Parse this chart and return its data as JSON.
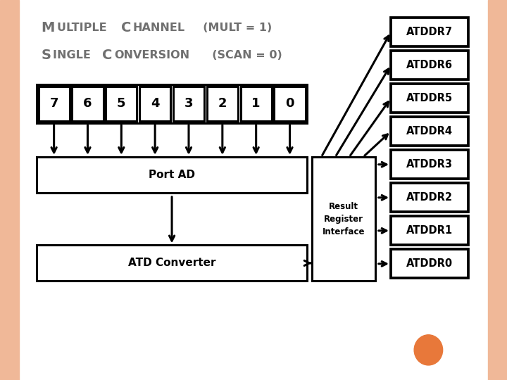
{
  "slide_bg": "#FFFFFF",
  "border_color": "#F0B090",
  "channel_labels": [
    "7",
    "6",
    "5",
    "4",
    "3",
    "2",
    "1",
    "0"
  ],
  "port_ad_label": "Port AD",
  "atd_converter_label": "ATD Converter",
  "result_register_label": "Result\nRegister\nInterface",
  "atddr_labels": [
    "ATDDR7",
    "ATDDR6",
    "ATDDR5",
    "ATDDR4",
    "ATDDR3",
    "ATDDR2",
    "ATDDR1",
    "ATDDR0"
  ],
  "box_fill": "#FFFFFF",
  "box_edge": "#000000",
  "arrow_color": "#000000",
  "text_color": "#000000",
  "title_color": "#707070",
  "orange_circle_color": "#E8783A",
  "title1_caps": "ULTIPLE",
  "title1_cap1": "M",
  "title1_rest": " CHANNEL  (MULT = 1)",
  "title1_cap2": "C",
  "title2_cap1": "S",
  "title2_caps": "INGLE",
  "title2_cap2": "C",
  "title2_rest": " ONVERSION  (SCAN = 0)"
}
